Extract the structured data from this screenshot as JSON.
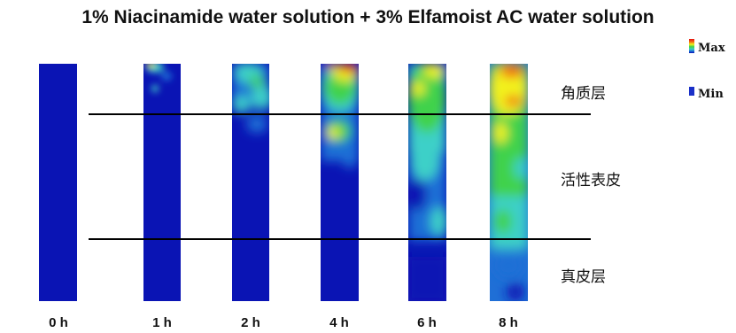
{
  "title": "1% Niacinamide water solution + 3% Elfamoist AC water solution",
  "legend": {
    "max_label": "Max",
    "min_label": "Min"
  },
  "layers": {
    "stratum_corneum": "角质层",
    "viable_epidermis": "活性表皮",
    "dermis": "真皮层"
  },
  "timepoints": [
    "0 h",
    "1 h",
    "2 h",
    "4 h",
    "6 h",
    "8 h"
  ],
  "colors": {
    "min": "#0a14b4",
    "low": "#1f6fd6",
    "mid_low": "#3ed0c8",
    "mid": "#3fd24c",
    "mid_high": "#f2f21c",
    "high": "#f06a14",
    "max": "#e60f0f"
  }
}
